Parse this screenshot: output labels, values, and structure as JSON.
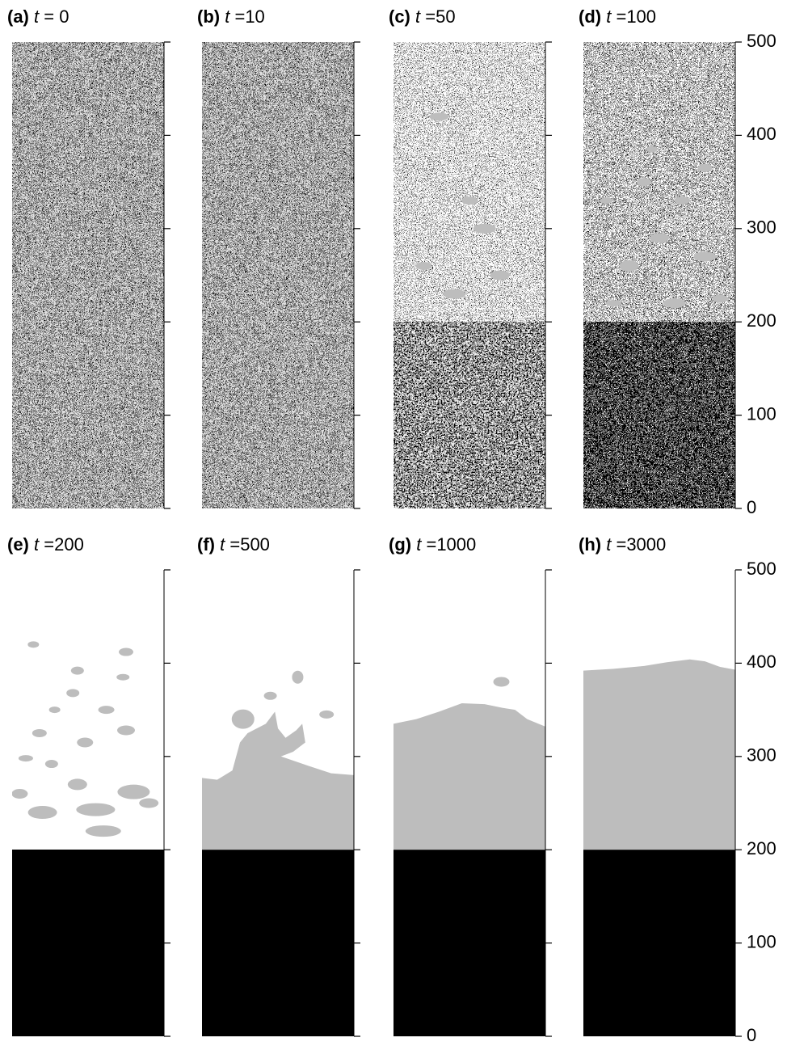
{
  "chart_data": {
    "type": "image-grid",
    "panels": [
      {
        "label": "(a)",
        "variable": "t",
        "time_text": "= 0"
      },
      {
        "label": "(b)",
        "variable": "t",
        "time_text": "=10"
      },
      {
        "label": "(c)",
        "variable": "t",
        "time_text": "=50"
      },
      {
        "label": "(d)",
        "variable": "t",
        "time_text": "=100"
      },
      {
        "label": "(e)",
        "variable": "t",
        "time_text": "=200"
      },
      {
        "label": "(f)",
        "variable": "t",
        "time_text": "=500"
      },
      {
        "label": "(g)",
        "variable": "t",
        "time_text": "=1000"
      },
      {
        "label": "(h)",
        "variable": "t",
        "time_text": "=3000"
      }
    ],
    "ylim": [
      0,
      500
    ],
    "yticks": [
      0,
      100,
      200,
      300,
      400,
      500
    ]
  }
}
